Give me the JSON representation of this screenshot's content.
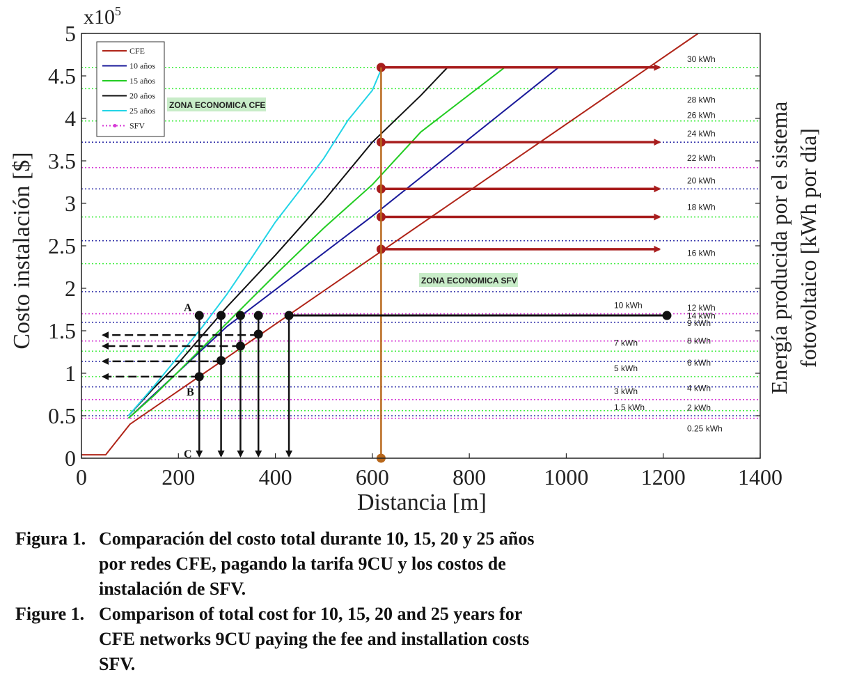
{
  "chart_data": {
    "type": "line",
    "exponent_label": "x10",
    "exponent_power": "5",
    "xlabel": "Distancia [m]",
    "ylabel": "Costo instalación [$]",
    "y2label_line1": "Energía producida por el sistema",
    "y2label_line2": "fotovoltaico [kWh por día]",
    "xlim": [
      0,
      1400
    ],
    "ylim": [
      0,
      5
    ],
    "x_ticks": [
      "0",
      "200",
      "400",
      "600",
      "800",
      "1000",
      "1200",
      "1400"
    ],
    "y_ticks": [
      "0",
      "0.5",
      "1",
      "1.5",
      "2",
      "2.5",
      "3",
      "3.5",
      "4",
      "4.5",
      "5"
    ],
    "legend_position": "top-left",
    "series": [
      {
        "name": "CFE",
        "color": "#b02418",
        "x": [
          0,
          50,
          100,
          1272
        ],
        "y": [
          0.04,
          0.04,
          0.4,
          5.0
        ]
      },
      {
        "name": "10 años",
        "color": "#1a1a9a",
        "x": [
          97,
          300,
          600,
          984
        ],
        "y": [
          0.47,
          1.55,
          2.85,
          4.6
        ]
      },
      {
        "name": "15 años",
        "color": "#22cc22",
        "x": [
          97,
          150,
          200,
          300,
          400,
          500,
          600,
          700,
          873
        ],
        "y": [
          0.47,
          0.74,
          1.02,
          1.59,
          2.16,
          2.71,
          3.22,
          3.84,
          4.6
        ]
      },
      {
        "name": "20 años",
        "color": "#111111",
        "x": [
          97,
          150,
          200,
          300,
          400,
          500,
          600,
          700,
          755
        ],
        "y": [
          0.5,
          0.83,
          1.12,
          1.78,
          2.39,
          3.03,
          3.72,
          4.27,
          4.6
        ]
      },
      {
        "name": "25 años",
        "color": "#22d4e6",
        "x": [
          97,
          150,
          200,
          250,
          300,
          350,
          400,
          450,
          500,
          550,
          600,
          620
        ],
        "y": [
          0.5,
          0.85,
          1.2,
          1.55,
          1.93,
          2.35,
          2.78,
          3.15,
          3.53,
          3.98,
          4.33,
          4.6
        ]
      },
      {
        "name": "SFV",
        "color": "#d63ad6",
        "style": "dotted"
      }
    ],
    "kwh_levels": [
      {
        "label": "30 kWh",
        "y": 4.6,
        "color": "#44ee44"
      },
      {
        "label": "28 kWh",
        "y": 4.35,
        "color": "#44ee44"
      },
      {
        "label": "26 kWh",
        "y": 3.97,
        "color": "#44ee44"
      },
      {
        "label": "24 kWh",
        "y": 3.72,
        "color": "#3333aa"
      },
      {
        "label": "22 kWh",
        "y": 3.42,
        "color": "#d63ad6"
      },
      {
        "label": "20 kWh",
        "y": 3.17,
        "color": "#3333aa"
      },
      {
        "label": "18 kWh",
        "y": 2.84,
        "color": "#44ee44"
      },
      {
        "label": "16 kWh",
        "y": 2.56,
        "color": "#3333aa"
      },
      {
        "label": "14 kWh",
        "y": 2.29,
        "color": "#44ee44"
      },
      {
        "label": "12 kWh",
        "y": 1.96,
        "color": "#3333aa"
      },
      {
        "label": "10 kWh",
        "y": 1.7,
        "color": "#d63ad6"
      },
      {
        "label": "9 kWh",
        "y": 1.6,
        "color": "#3333aa"
      },
      {
        "label": "8 kWh",
        "y": 1.38,
        "color": "#d63ad6"
      },
      {
        "label": "7 kWh",
        "y": 1.26,
        "color": "#44ee44"
      },
      {
        "label": "6 kWh",
        "y": 1.14,
        "color": "#3333aa"
      },
      {
        "label": "5 kWh",
        "y": 0.96,
        "color": "#44ee44"
      },
      {
        "label": "4 kWh",
        "y": 0.84,
        "color": "#3333aa"
      },
      {
        "label": "3 kWh",
        "y": 0.69,
        "color": "#d63ad6"
      },
      {
        "label": "2 kWh",
        "y": 0.56,
        "color": "#44ee44"
      },
      {
        "label": "1.5 kWh",
        "y": 0.5,
        "color": "#3333aa"
      },
      {
        "label": "0.25 kWh",
        "y": 0.47,
        "color": "#d63ad6"
      }
    ],
    "annotations": {
      "zone_cfe": "ZONA ECONOMICA CFE",
      "zone_sfv": "ZONA ECONOMICA SFV",
      "point_a": "A",
      "point_b": "B",
      "point_c": "C"
    },
    "horizontal_arrows": {
      "x_start": 618,
      "x_end": 1220,
      "y": [
        4.6,
        3.72,
        3.17,
        2.84,
        2.46
      ]
    },
    "vertical_line": {
      "x": 618,
      "y_top": 4.6
    },
    "markers_top": [
      {
        "x": 243,
        "y": 1.68
      },
      {
        "x": 288,
        "y": 1.68
      },
      {
        "x": 328,
        "y": 1.68
      },
      {
        "x": 365,
        "y": 1.68
      },
      {
        "x": 428,
        "y": 1.68
      }
    ],
    "markers_low": [
      {
        "x": 243,
        "y": 0.96
      },
      {
        "x": 288,
        "y": 1.15
      },
      {
        "x": 328,
        "y": 1.32
      },
      {
        "x": 365,
        "y": 1.46
      }
    ],
    "dashed_arrows_y": [
      1.45,
      1.32,
      1.14,
      0.96
    ],
    "line_10kwh": {
      "x_start": 428,
      "x_end": 1210,
      "y": 1.68
    }
  },
  "caption": {
    "es_label": "Figura 1.",
    "es_text": "Comparación del costo total durante 10, 15, 20 y 25 años por redes CFE, pagando la tarifa 9CU y los costos de instalación de SFV.",
    "en_label": "Figure 1.",
    "en_text": "Comparison of total cost for 10, 15, 20 and 25 years for CFE networks 9CU paying the fee and installation costs SFV."
  }
}
